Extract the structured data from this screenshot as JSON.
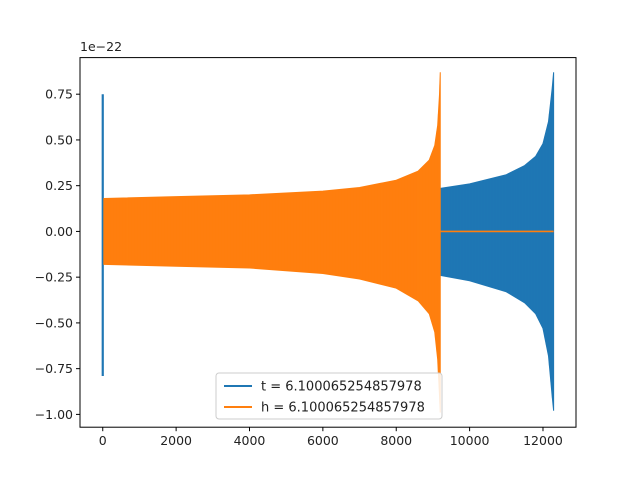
{
  "chart_data": {
    "type": "line",
    "title": "",
    "xlabel": "",
    "ylabel": "",
    "y_offset_label": "1e−22",
    "xlim": [
      -620,
      12900
    ],
    "ylim": [
      -1.07,
      0.95
    ],
    "grid": false,
    "legend_position": "lower-center",
    "x_ticks": [
      0,
      2000,
      4000,
      6000,
      8000,
      10000,
      12000
    ],
    "x_tick_labels": [
      "0",
      "2000",
      "4000",
      "6000",
      "8000",
      "10000",
      "12000"
    ],
    "y_ticks": [
      -1.0,
      -0.75,
      -0.5,
      -0.25,
      0.0,
      0.25,
      0.5,
      0.75
    ],
    "y_tick_labels": [
      "−1.00",
      "−0.75",
      "−0.50",
      "−0.25",
      "0.00",
      "0.25",
      "0.50",
      "0.75"
    ],
    "series": [
      {
        "name": "t = 6.100065254857978",
        "color": "#1f77b4",
        "description": "oscillating waveform (envelope)",
        "spike": {
          "x": 0,
          "max": 0.75,
          "min": -0.79
        },
        "envelope": {
          "x": [
            30,
            2000,
            4000,
            6000,
            8000,
            9200,
            10000,
            11000,
            11500,
            11800,
            12000,
            12150,
            12250,
            12290
          ],
          "upper": [
            0.17,
            0.18,
            0.19,
            0.2,
            0.22,
            0.235,
            0.26,
            0.31,
            0.36,
            0.41,
            0.48,
            0.6,
            0.78,
            0.87
          ],
          "lower": [
            -0.17,
            -0.18,
            -0.19,
            -0.2,
            -0.22,
            -0.24,
            -0.27,
            -0.33,
            -0.39,
            -0.45,
            -0.53,
            -0.68,
            -0.9,
            -0.98
          ]
        }
      },
      {
        "name": "h = 6.100065254857978",
        "color": "#ff7f0e",
        "description": "oscillating waveform (envelope), zero after merger",
        "envelope": {
          "x": [
            30,
            2000,
            4000,
            6000,
            7000,
            8000,
            8600,
            8900,
            9050,
            9130,
            9180,
            9200
          ],
          "upper": [
            0.18,
            0.19,
            0.2,
            0.22,
            0.24,
            0.28,
            0.33,
            0.39,
            0.47,
            0.58,
            0.75,
            0.87
          ],
          "lower": [
            -0.18,
            -0.19,
            -0.2,
            -0.23,
            -0.26,
            -0.31,
            -0.38,
            -0.45,
            -0.55,
            -0.7,
            -0.9,
            -0.99
          ]
        },
        "flat_after": {
          "x_start": 9200,
          "x_end": 12290,
          "value": 0.0
        }
      }
    ]
  }
}
